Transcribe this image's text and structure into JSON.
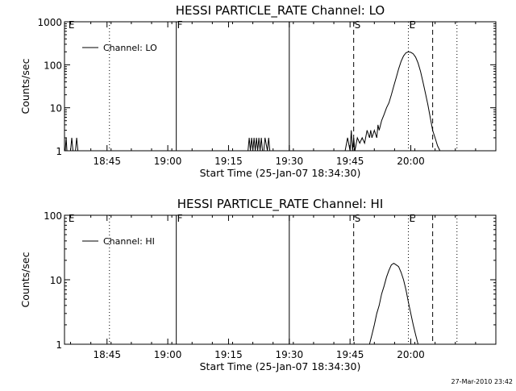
{
  "chart_data": [
    {
      "type": "line",
      "title": "HESSI PARTICLE_RATE Channel: LO",
      "xlabel": "Start Time (25-Jan-07 18:34:30)",
      "ylabel": "Counts/sec",
      "yscale": "log",
      "xlim": [
        18.575,
        20.35
      ],
      "ylim": [
        1,
        1000
      ],
      "x_ticks": [
        "18:45",
        "19:00",
        "19:15",
        "19:30",
        "19:45",
        "20:00"
      ],
      "x_tick_values": [
        18.75,
        19.0,
        19.25,
        19.5,
        19.75,
        20.0
      ],
      "y_ticks": [
        "1",
        "10",
        "100",
        "1000"
      ],
      "y_tick_values": [
        1,
        10,
        100,
        1000
      ],
      "legend": {
        "label": "Channel: LO",
        "placement": "top-left"
      },
      "markers": [
        {
          "label": "E",
          "x": 18.588,
          "style": "none"
        },
        {
          "label": "",
          "x": 18.76,
          "style": "dotted"
        },
        {
          "label": "F",
          "x": 19.035,
          "style": "solid"
        },
        {
          "label": "",
          "x": 19.5,
          "style": "solid"
        },
        {
          "label": "S",
          "x": 19.765,
          "style": "dashed"
        },
        {
          "label": "E",
          "x": 19.99,
          "style": "dotted"
        },
        {
          "label": "",
          "x": 20.09,
          "style": "dashed"
        },
        {
          "label": "",
          "x": 20.19,
          "style": "dotted"
        }
      ],
      "series": [
        {
          "x": [
            18.578,
            18.582,
            18.585,
            18.6,
            18.605,
            18.61,
            18.62,
            18.625,
            18.63,
            19.33,
            19.335,
            19.34,
            19.345,
            19.35,
            19.355,
            19.36,
            19.365,
            19.37,
            19.375,
            19.38,
            19.385,
            19.39,
            19.395,
            19.4,
            19.41,
            19.415,
            19.42,
            19.73,
            19.74,
            19.75,
            19.755,
            19.76,
            19.765,
            19.77,
            19.78,
            19.79,
            19.8,
            19.81,
            19.82,
            19.83,
            19.835,
            19.84,
            19.85,
            19.86,
            19.865,
            19.87,
            19.88,
            19.89,
            19.9,
            19.91,
            19.92,
            19.93,
            19.94,
            19.95,
            19.96,
            19.97,
            19.98,
            19.99,
            20.0,
            20.01,
            20.02,
            20.03,
            20.04,
            20.05,
            20.06,
            20.07,
            20.08,
            20.09,
            20.1,
            20.11,
            20.12
          ],
          "y": [
            1,
            2,
            1,
            1,
            2,
            1,
            1,
            2,
            1,
            1,
            2,
            1,
            2,
            1,
            2,
            1,
            2,
            1,
            2,
            1,
            2,
            1,
            1,
            2,
            1,
            2,
            1,
            1,
            2,
            1,
            3,
            1,
            2,
            1,
            2,
            1.5,
            2,
            1.5,
            3,
            2,
            3,
            2,
            3,
            2,
            4,
            3,
            5,
            7,
            10,
            13,
            20,
            32,
            50,
            80,
            120,
            160,
            190,
            200,
            195,
            180,
            150,
            110,
            70,
            40,
            22,
            12,
            6,
            3,
            2,
            1.3,
            1
          ]
        }
      ]
    },
    {
      "type": "line",
      "title": "HESSI PARTICLE_RATE Channel: HI",
      "xlabel": "Start Time (25-Jan-07 18:34:30)",
      "ylabel": "Counts/sec",
      "yscale": "log",
      "xlim": [
        18.575,
        20.35
      ],
      "ylim": [
        1,
        100
      ],
      "x_ticks": [
        "18:45",
        "19:00",
        "19:15",
        "19:30",
        "19:45",
        "20:00"
      ],
      "x_tick_values": [
        18.75,
        19.0,
        19.25,
        19.5,
        19.75,
        20.0
      ],
      "y_ticks": [
        "1",
        "10",
        "100"
      ],
      "y_tick_values": [
        1,
        10,
        100
      ],
      "legend": {
        "label": "Channel: HI",
        "placement": "top-left"
      },
      "markers": [
        {
          "label": "E",
          "x": 18.588,
          "style": "none"
        },
        {
          "label": "",
          "x": 18.76,
          "style": "dotted"
        },
        {
          "label": "F",
          "x": 19.035,
          "style": "solid"
        },
        {
          "label": "",
          "x": 19.5,
          "style": "solid"
        },
        {
          "label": "S",
          "x": 19.765,
          "style": "dashed"
        },
        {
          "label": "E",
          "x": 19.99,
          "style": "dotted"
        },
        {
          "label": "",
          "x": 20.09,
          "style": "dashed"
        },
        {
          "label": "",
          "x": 20.19,
          "style": "dotted"
        }
      ],
      "series": [
        {
          "x": [
            19.83,
            19.84,
            19.85,
            19.86,
            19.87,
            19.88,
            19.89,
            19.9,
            19.91,
            19.92,
            19.93,
            19.94,
            19.95,
            19.96,
            19.97,
            19.98,
            19.99,
            20.0,
            20.01,
            20.02,
            20.03
          ],
          "y": [
            1,
            1.4,
            2,
            3,
            4,
            6,
            8,
            11,
            14,
            17,
            18,
            17,
            16,
            13,
            10,
            7,
            4.5,
            3,
            2,
            1.4,
            1
          ]
        }
      ]
    }
  ],
  "timestamp": "27-Mar-2010 23:42"
}
